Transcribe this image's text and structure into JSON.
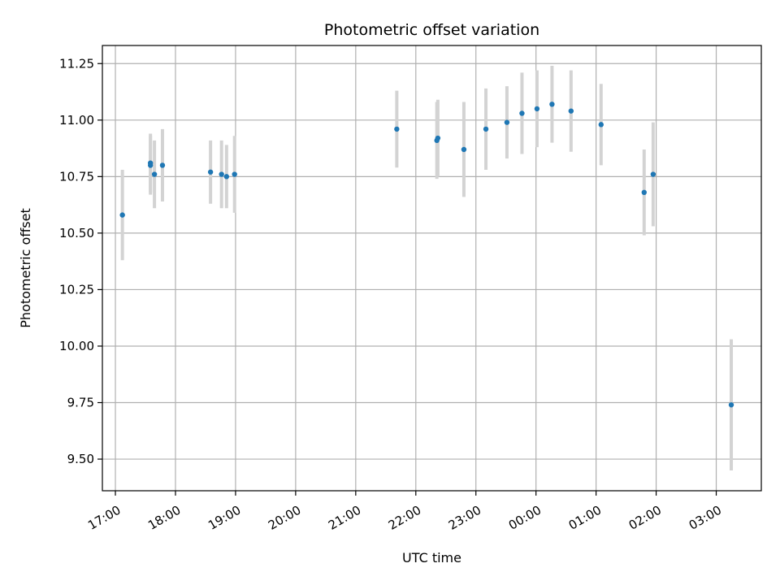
{
  "chart_data": {
    "type": "scatter",
    "title": "Photometric offset variation",
    "xlabel": "UTC time",
    "ylabel": "Photometric offset",
    "x_axis_type": "time",
    "xlim": [
      "16:47",
      "03:45"
    ],
    "ylim": [
      9.36,
      11.33
    ],
    "x_ticks": [
      "17:00",
      "18:00",
      "19:00",
      "20:00",
      "21:00",
      "22:00",
      "23:00",
      "00:00",
      "01:00",
      "02:00",
      "03:00"
    ],
    "y_ticks": [
      9.5,
      9.75,
      10.0,
      10.25,
      10.5,
      10.75,
      11.0,
      11.25
    ],
    "y_tick_labels": [
      "9.50",
      "9.75",
      "10.00",
      "10.25",
      "10.50",
      "10.75",
      "11.00",
      "11.25"
    ],
    "grid": true,
    "point_color": "#1f77b4",
    "errorbar_color": "#d3d3d3",
    "points": [
      {
        "time": "17:07",
        "y": 10.58,
        "err": 0.2
      },
      {
        "time": "17:35",
        "y": 10.8,
        "err": 0.13
      },
      {
        "time": "17:35",
        "y": 10.81,
        "err": 0.13
      },
      {
        "time": "17:39",
        "y": 10.76,
        "err": 0.15
      },
      {
        "time": "17:47",
        "y": 10.8,
        "err": 0.16
      },
      {
        "time": "18:35",
        "y": 10.77,
        "err": 0.14
      },
      {
        "time": "18:46",
        "y": 10.76,
        "err": 0.15
      },
      {
        "time": "18:51",
        "y": 10.75,
        "err": 0.14
      },
      {
        "time": "18:59",
        "y": 10.76,
        "err": 0.17
      },
      {
        "time": "21:41",
        "y": 10.96,
        "err": 0.17
      },
      {
        "time": "22:21",
        "y": 10.91,
        "err": 0.17
      },
      {
        "time": "22:22",
        "y": 10.92,
        "err": 0.17
      },
      {
        "time": "22:48",
        "y": 10.87,
        "err": 0.21
      },
      {
        "time": "23:10",
        "y": 10.96,
        "err": 0.18
      },
      {
        "time": "23:31",
        "y": 10.99,
        "err": 0.16
      },
      {
        "time": "23:46",
        "y": 11.03,
        "err": 0.18
      },
      {
        "time": "00:01",
        "y": 11.05,
        "err": 0.17
      },
      {
        "time": "00:16",
        "y": 11.07,
        "err": 0.17
      },
      {
        "time": "00:35",
        "y": 11.04,
        "err": 0.18
      },
      {
        "time": "01:05",
        "y": 10.98,
        "err": 0.18
      },
      {
        "time": "01:48",
        "y": 10.68,
        "err": 0.19
      },
      {
        "time": "01:57",
        "y": 10.76,
        "err": 0.23
      },
      {
        "time": "03:15",
        "y": 9.74,
        "err": 0.29
      }
    ]
  }
}
